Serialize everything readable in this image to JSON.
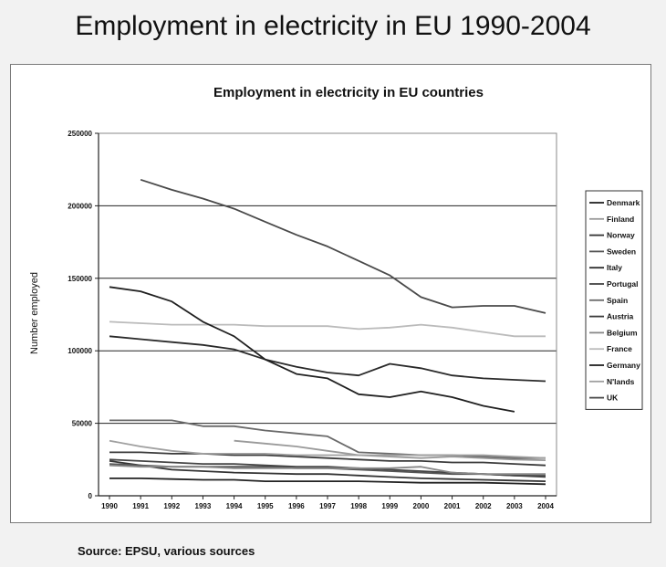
{
  "slide_title": "Employment in electricity in EU 1990-2004",
  "source": "Source: EPSU, various sources",
  "chart_data": {
    "type": "line",
    "title": "Employment in electricity in EU countries",
    "xlabel": "",
    "ylabel": "Number employed",
    "x": [
      "1990",
      "1991",
      "1992",
      "1993",
      "1994",
      "1995",
      "1996",
      "1997",
      "1998",
      "1999",
      "2000",
      "2001",
      "2002",
      "2003",
      "2004"
    ],
    "ylim": [
      0,
      250000
    ],
    "yticks": [
      0,
      50000,
      100000,
      150000,
      200000,
      250000
    ],
    "grid": "horizontal",
    "legend": "right",
    "series": [
      {
        "name": "Denmark",
        "color": "#222222",
        "values": [
          12000,
          12000,
          11500,
          11000,
          11000,
          10000,
          10000,
          10000,
          10000,
          9500,
          9000,
          9000,
          9000,
          8500,
          8000
        ]
      },
      {
        "name": "Finland",
        "color": "#9a9a9a",
        "values": [
          null,
          null,
          null,
          null,
          38000,
          36000,
          34000,
          31000,
          28000,
          27000,
          26000,
          27000,
          26000,
          25000,
          24500
        ]
      },
      {
        "name": "Norway",
        "color": "#333333",
        "values": [
          24000,
          21000,
          18000,
          17000,
          16000,
          15500,
          15000,
          15000,
          14000,
          13000,
          12000,
          11500,
          11000,
          10500,
          10000
        ]
      },
      {
        "name": "Sweden",
        "color": "#555555",
        "values": [
          22000,
          21000,
          20000,
          20000,
          20000,
          20000,
          19000,
          19000,
          18000,
          17000,
          16000,
          15000,
          15000,
          14000,
          14000
        ]
      },
      {
        "name": "Italy",
        "color": "#2a2a2a",
        "values": [
          110000,
          108000,
          106000,
          104000,
          101000,
          94000,
          89000,
          85000,
          83000,
          91000,
          88000,
          83000,
          81000,
          80000,
          79000
        ]
      },
      {
        "name": "Portugal",
        "color": "#444444",
        "values": [
          25000,
          24000,
          23000,
          22000,
          22000,
          21000,
          20000,
          20000,
          19000,
          18000,
          17000,
          16000,
          15000,
          14000,
          13000
        ]
      },
      {
        "name": "Spain",
        "color": "#6a6a6a",
        "values": [
          52000,
          52000,
          52000,
          48000,
          48000,
          45000,
          43000,
          41000,
          30000,
          29000,
          28000,
          28000,
          27000,
          26000,
          26000
        ]
      },
      {
        "name": "Austria",
        "color": "#3a3a3a",
        "values": [
          30000,
          30000,
          29000,
          29000,
          28000,
          28000,
          27000,
          26000,
          25000,
          24000,
          24000,
          23000,
          23000,
          22000,
          21000
        ]
      },
      {
        "name": "Belgium",
        "color": "#888888",
        "values": [
          21000,
          20000,
          20000,
          20000,
          19000,
          19000,
          19000,
          19000,
          19000,
          19000,
          20000,
          16000,
          15000,
          15000,
          15000
        ]
      },
      {
        "name": "France",
        "color": "#bbbbbb",
        "values": [
          120000,
          119000,
          118000,
          118000,
          118000,
          117000,
          117000,
          117000,
          115000,
          116000,
          118000,
          116000,
          113000,
          110000,
          110000
        ]
      },
      {
        "name": "Germany",
        "color": "#202020",
        "values": [
          144000,
          141000,
          134000,
          120000,
          110000,
          94000,
          84000,
          81000,
          70000,
          68000,
          72000,
          68000,
          62000,
          58000,
          null
        ]
      },
      {
        "name": "N'lands",
        "color": "#a0a0a0",
        "values": [
          38000,
          34000,
          31000,
          29000,
          29000,
          29000,
          28000,
          28000,
          28000,
          28000,
          28000,
          28000,
          28000,
          27000,
          26000
        ]
      },
      {
        "name": "UK",
        "color": "#4a4a4a",
        "values": [
          null,
          218000,
          211000,
          205000,
          198000,
          189000,
          180000,
          172000,
          162000,
          152000,
          137000,
          130000,
          131000,
          131000,
          126000
        ]
      }
    ]
  }
}
